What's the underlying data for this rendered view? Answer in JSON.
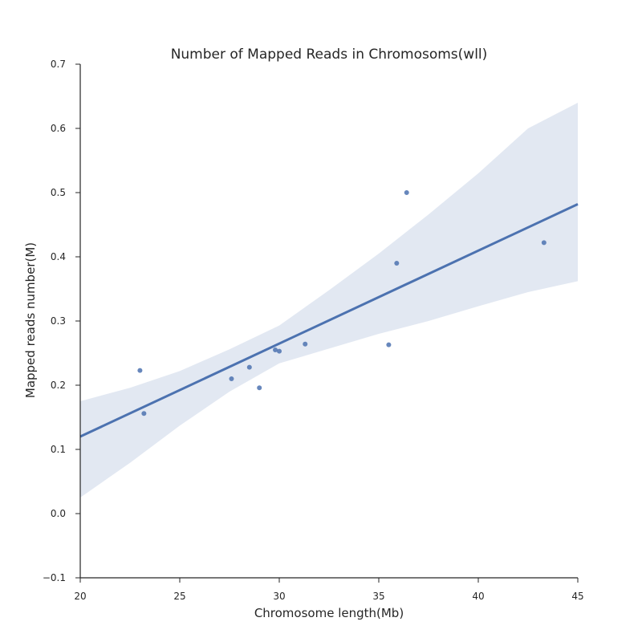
{
  "chart_data": {
    "type": "scatter",
    "title": "Number of Mapped Reads in Chromosoms(wll)",
    "xlabel": "Chromosome length(Mb)",
    "ylabel": "Mapped reads number(M)",
    "xlim": [
      20,
      45
    ],
    "ylim": [
      -0.1,
      0.7
    ],
    "xticks": [
      20,
      25,
      30,
      35,
      40,
      45
    ],
    "yticks": [
      -0.1,
      0.0,
      0.1,
      0.2,
      0.3,
      0.4,
      0.5,
      0.6,
      0.7
    ],
    "xtick_labels": [
      "20",
      "25",
      "30",
      "35",
      "40",
      "45"
    ],
    "ytick_labels": [
      "−0.1",
      "0.0",
      "0.1",
      "0.2",
      "0.3",
      "0.4",
      "0.5",
      "0.6",
      "0.7"
    ],
    "grid": false,
    "colors": {
      "series": "#4c72b0",
      "axes": "#262626"
    },
    "points": [
      {
        "x": 23.0,
        "y": 0.223
      },
      {
        "x": 23.2,
        "y": 0.156
      },
      {
        "x": 27.6,
        "y": 0.21
      },
      {
        "x": 28.5,
        "y": 0.228
      },
      {
        "x": 29.0,
        "y": 0.196
      },
      {
        "x": 29.8,
        "y": 0.255
      },
      {
        "x": 30.0,
        "y": 0.253
      },
      {
        "x": 31.3,
        "y": 0.264
      },
      {
        "x": 35.5,
        "y": 0.263
      },
      {
        "x": 35.9,
        "y": 0.39
      },
      {
        "x": 36.4,
        "y": 0.5
      },
      {
        "x": 43.3,
        "y": 0.422
      }
    ],
    "regression": {
      "x": [
        20,
        45
      ],
      "y": [
        0.12,
        0.482
      ]
    },
    "confidence_band": {
      "x": [
        20,
        22.5,
        25,
        27.5,
        30,
        32.5,
        35,
        37.5,
        40,
        42.5,
        45
      ],
      "upper": [
        0.175,
        0.196,
        0.222,
        0.256,
        0.293,
        0.348,
        0.405,
        0.466,
        0.53,
        0.6,
        0.64
      ],
      "lower": [
        0.025,
        0.079,
        0.137,
        0.19,
        0.234,
        0.257,
        0.28,
        0.3,
        0.323,
        0.345,
        0.362
      ]
    }
  }
}
